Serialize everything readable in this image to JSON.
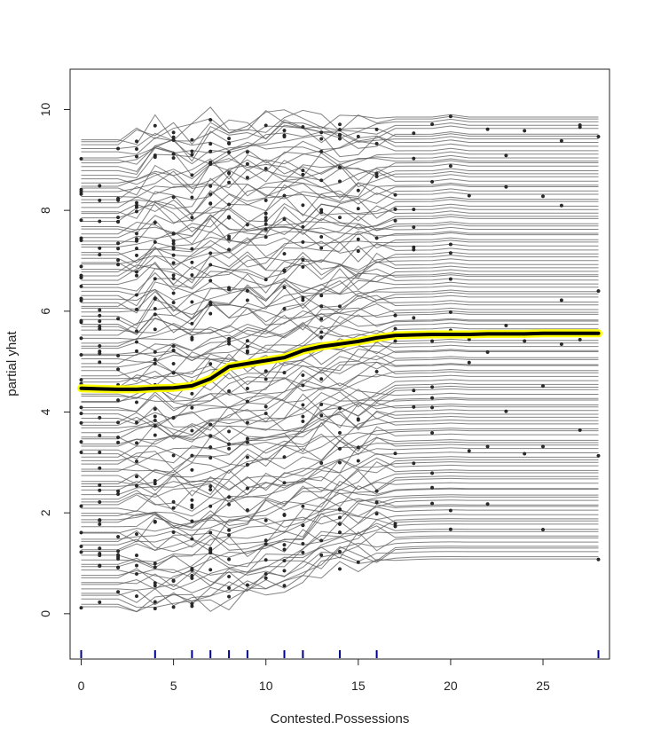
{
  "chart_data": {
    "type": "line",
    "title": "",
    "xlabel": "Contested.Possessions",
    "ylabel": "partial yhat",
    "xlim": [
      -0.6,
      28.6
    ],
    "ylim": [
      -0.9,
      10.8
    ],
    "x_ticks": [
      0,
      5,
      10,
      15,
      20,
      25
    ],
    "y_ticks": [
      0,
      2,
      4,
      6,
      8,
      10
    ],
    "grid": false,
    "legend": "none",
    "colors": {
      "ice_lines": "#5a5a5a",
      "observed_points": "#2b2b2b",
      "pdp_outline": "#ffff00",
      "pdp_line": "#000000",
      "rug": "#00008b",
      "frame": "#222222"
    },
    "x": [
      0,
      1,
      2,
      3,
      4,
      5,
      6,
      7,
      8,
      9,
      10,
      11,
      12,
      13,
      14,
      15,
      16,
      17,
      18,
      19,
      20,
      21,
      22,
      23,
      24,
      25,
      26,
      27,
      28
    ],
    "series": [
      {
        "role": "average partial dependence (yellow outlined black line)",
        "values": [
          4.47,
          4.46,
          4.45,
          4.45,
          4.47,
          4.48,
          4.52,
          4.66,
          4.9,
          4.96,
          5.02,
          5.08,
          5.22,
          5.3,
          5.35,
          5.4,
          5.47,
          5.52,
          5.53,
          5.54,
          5.54,
          5.54,
          5.55,
          5.55,
          5.55,
          5.56,
          5.56,
          5.56,
          5.56
        ]
      }
    ],
    "ice_band": {
      "upper_values": [
        9.4,
        9.4,
        9.4,
        9.45,
        9.7,
        9.6,
        9.55,
        9.8,
        9.8,
        9.8,
        9.8,
        9.9,
        9.85,
        9.85,
        9.8,
        9.8,
        9.85,
        9.85,
        9.85,
        9.85,
        9.9,
        9.85,
        9.85,
        9.85,
        9.85,
        9.85,
        9.85,
        9.85,
        9.85
      ],
      "lower_values": [
        0.1,
        0.1,
        0.1,
        0.1,
        0.1,
        0.1,
        0.12,
        0.15,
        0.2,
        0.28,
        0.35,
        0.45,
        0.6,
        0.75,
        0.85,
        0.95,
        1.0,
        1.02,
        1.04,
        1.05,
        1.05,
        1.05,
        1.05,
        1.05,
        1.05,
        1.05,
        1.05,
        1.05,
        1.05
      ]
    },
    "rug_x": [
      0,
      4,
      6,
      7,
      8,
      9,
      11,
      12,
      14,
      16,
      28
    ]
  }
}
